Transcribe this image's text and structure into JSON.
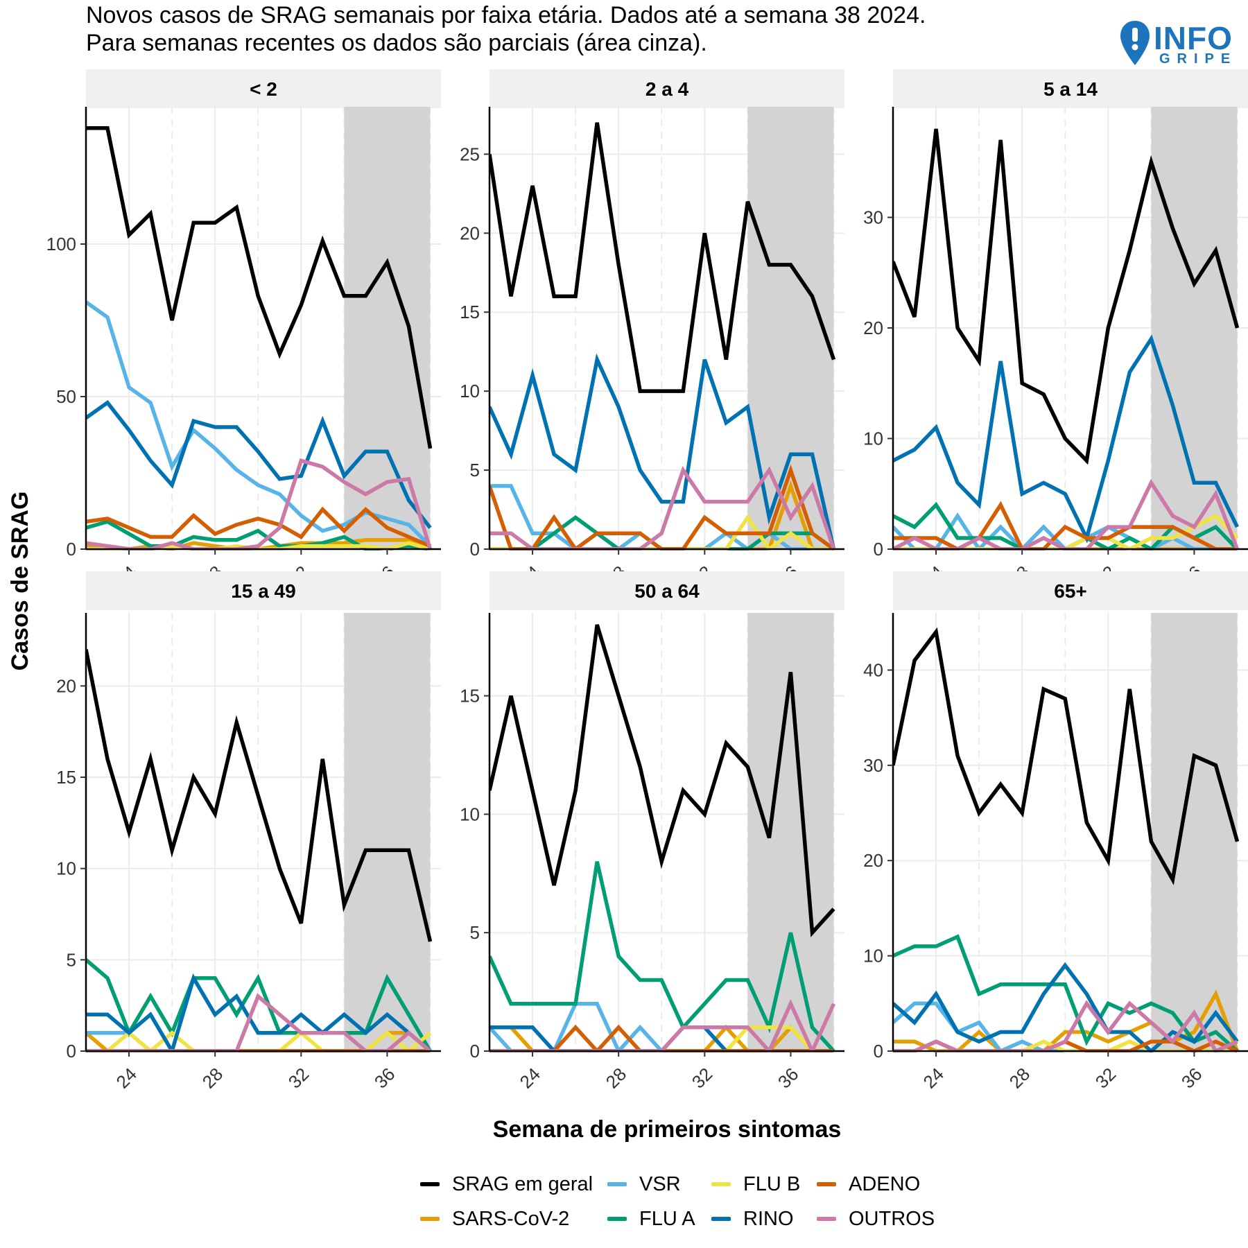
{
  "title": {
    "line1": "Novos casos de SRAG semanais por faixa etária. Dados até a semana 38 2024.",
    "line2": "Para semanas recentes os dados são parciais (área cinza)."
  },
  "logo": {
    "big": "INFO",
    "small": "GRIPE"
  },
  "series_styles": [
    {
      "key": "srag",
      "color": "#000000"
    },
    {
      "key": "sars",
      "color": "#E69F00"
    },
    {
      "key": "vsr",
      "color": "#56B4E9"
    },
    {
      "key": "flua",
      "color": "#009E73"
    },
    {
      "key": "flub",
      "color": "#F0E442"
    },
    {
      "key": "rino",
      "color": "#0072B2"
    },
    {
      "key": "adeno",
      "color": "#D55E00"
    },
    {
      "key": "outros",
      "color": "#CC79A7"
    }
  ],
  "legend": [
    {
      "label": "SRAG em geral",
      "color": "#000000"
    },
    {
      "label": "SARS-CoV-2",
      "color": "#E69F00"
    },
    {
      "label": "VSR",
      "color": "#56B4E9"
    },
    {
      "label": "FLU A",
      "color": "#009E73"
    },
    {
      "label": "FLU B",
      "color": "#F0E442"
    },
    {
      "label": "RINO",
      "color": "#0072B2"
    },
    {
      "label": "ADENO",
      "color": "#D55E00"
    },
    {
      "label": "OUTROS",
      "color": "#CC79A7"
    }
  ],
  "chart_data": {
    "type": "line",
    "xlabel": "Semana de primeiros sintomas",
    "ylabel": "Casos de SRAG",
    "x": [
      22,
      23,
      24,
      25,
      26,
      27,
      28,
      29,
      30,
      31,
      32,
      33,
      34,
      35,
      36,
      37,
      38
    ],
    "x_ticks": [
      24,
      28,
      32,
      36
    ],
    "x_tick_labels": [
      "24",
      "28",
      "32",
      "36"
    ],
    "xlim": [
      22,
      38.5
    ],
    "partial_region": [
      34,
      38
    ],
    "grid": true,
    "legend_position": "bottom",
    "panels": [
      {
        "name": "< 2",
        "ylim": [
          0,
          145
        ],
        "y_ticks": [
          0,
          50,
          100
        ],
        "y_tick_labels": [
          "0",
          "50",
          "100"
        ],
        "series": {
          "srag": [
            138,
            138,
            103,
            110,
            75,
            107,
            107,
            112,
            83,
            64,
            80,
            101,
            83,
            83,
            94,
            73,
            33
          ],
          "vsr": [
            81,
            76,
            53,
            48,
            27,
            39,
            33,
            26,
            21,
            18,
            11,
            6,
            8,
            12,
            10,
            8,
            1
          ],
          "rino": [
            43,
            48,
            39,
            29,
            21,
            42,
            40,
            40,
            32,
            23,
            24,
            42,
            24,
            32,
            32,
            16,
            7
          ],
          "flua": [
            7,
            9,
            5,
            1,
            1,
            4,
            3,
            3,
            6,
            1,
            1,
            2,
            4,
            0,
            0,
            1,
            0
          ],
          "adeno": [
            9,
            10,
            7,
            4,
            4,
            11,
            5,
            8,
            10,
            8,
            4,
            13,
            6,
            13,
            7,
            4,
            1
          ],
          "sars": [
            1,
            1,
            0,
            1,
            0,
            2,
            1,
            0,
            0,
            1,
            2,
            2,
            2,
            3,
            3,
            3,
            0
          ],
          "flub": [
            0,
            0,
            0,
            0,
            1,
            0,
            0,
            1,
            0,
            0,
            1,
            1,
            1,
            1,
            0,
            2,
            0
          ],
          "outros": [
            2,
            1,
            0,
            0,
            2,
            0,
            0,
            0,
            1,
            7,
            29,
            27,
            22,
            18,
            22,
            23,
            0
          ]
        }
      },
      {
        "name": "2 a 4",
        "ylim": [
          0,
          28
        ],
        "y_ticks": [
          0,
          5,
          10,
          15,
          20,
          25
        ],
        "y_tick_labels": [
          "0",
          "5",
          "10",
          "15",
          "20",
          "25"
        ],
        "series": {
          "srag": [
            25,
            16,
            23,
            16,
            16,
            27,
            18,
            10,
            10,
            10,
            20,
            12,
            22,
            18,
            18,
            16,
            12
          ],
          "vsr": [
            4,
            4,
            1,
            1,
            0,
            1,
            0,
            1,
            0,
            0,
            0,
            1,
            0,
            1,
            0,
            0,
            0
          ],
          "rino": [
            9,
            6,
            11,
            6,
            5,
            12,
            9,
            5,
            3,
            3,
            12,
            8,
            9,
            2,
            6,
            6,
            0
          ],
          "flua": [
            0,
            0,
            0,
            1,
            2,
            1,
            0,
            0,
            0,
            0,
            0,
            0,
            0,
            1,
            1,
            1,
            0
          ],
          "adeno": [
            4,
            0,
            0,
            2,
            0,
            1,
            1,
            1,
            0,
            0,
            2,
            1,
            1,
            1,
            5,
            1,
            0
          ],
          "sars": [
            0,
            0,
            0,
            0,
            0,
            0,
            0,
            0,
            0,
            0,
            0,
            0,
            0,
            0,
            4,
            0,
            0
          ],
          "flub": [
            0,
            0,
            0,
            0,
            0,
            0,
            0,
            0,
            0,
            0,
            0,
            0,
            2,
            0,
            1,
            0,
            0
          ],
          "outros": [
            1,
            1,
            0,
            0,
            0,
            0,
            0,
            0,
            1,
            5,
            3,
            3,
            3,
            5,
            2,
            4,
            0
          ]
        }
      },
      {
        "name": "5 a 14",
        "ylim": [
          0,
          40
        ],
        "y_ticks": [
          0,
          10,
          20,
          30
        ],
        "y_tick_labels": [
          "0",
          "10",
          "20",
          "30"
        ],
        "series": {
          "srag": [
            26,
            21,
            38,
            20,
            17,
            37,
            15,
            14,
            10,
            8,
            20,
            27,
            35,
            29,
            24,
            27,
            20
          ],
          "vsr": [
            2,
            0,
            0,
            3,
            0,
            2,
            0,
            2,
            0,
            1,
            2,
            1,
            0,
            1,
            0,
            0,
            0
          ],
          "rino": [
            8,
            9,
            11,
            6,
            4,
            17,
            5,
            6,
            5,
            1,
            8,
            16,
            19,
            13,
            6,
            6,
            2
          ],
          "flua": [
            3,
            2,
            4,
            1,
            1,
            1,
            0,
            0,
            0,
            1,
            0,
            1,
            0,
            2,
            1,
            2,
            0
          ],
          "adeno": [
            1,
            1,
            1,
            0,
            1,
            4,
            0,
            0,
            2,
            1,
            1,
            2,
            2,
            2,
            1,
            0,
            0
          ],
          "sars": [
            0,
            0,
            0,
            0,
            0,
            0,
            0,
            0,
            0,
            0,
            0,
            0,
            0,
            0,
            0,
            0,
            0
          ],
          "flub": [
            0,
            0,
            0,
            0,
            0,
            0,
            0,
            0,
            0,
            1,
            1,
            0,
            1,
            1,
            2,
            3,
            1
          ],
          "outros": [
            0,
            1,
            0,
            0,
            1,
            0,
            0,
            1,
            0,
            0,
            2,
            2,
            6,
            3,
            2,
            5,
            0
          ]
        }
      },
      {
        "name": "15 a 49",
        "ylim": [
          0,
          24
        ],
        "y_ticks": [
          0,
          5,
          10,
          15,
          20
        ],
        "y_tick_labels": [
          "0",
          "5",
          "10",
          "15",
          "20"
        ],
        "series": {
          "srag": [
            22,
            16,
            12,
            16,
            11,
            15,
            13,
            18,
            14,
            10,
            7,
            16,
            8,
            11,
            11,
            11,
            6
          ],
          "vsr": [
            1,
            1,
            1,
            0,
            0,
            0,
            0,
            0,
            0,
            0,
            0,
            0,
            0,
            0,
            0,
            0,
            0
          ],
          "rino": [
            2,
            2,
            1,
            2,
            0,
            4,
            2,
            3,
            1,
            1,
            2,
            1,
            2,
            1,
            2,
            1,
            0
          ],
          "flua": [
            5,
            4,
            1,
            3,
            1,
            4,
            4,
            2,
            4,
            1,
            1,
            1,
            1,
            1,
            4,
            2,
            0
          ],
          "adeno": [
            0,
            0,
            0,
            0,
            0,
            0,
            0,
            0,
            0,
            0,
            0,
            0,
            0,
            0,
            0,
            0,
            0
          ],
          "sars": [
            1,
            0,
            0,
            0,
            0,
            0,
            0,
            0,
            0,
            0,
            0,
            0,
            0,
            0,
            1,
            1,
            0
          ],
          "flub": [
            0,
            0,
            1,
            0,
            1,
            0,
            0,
            0,
            0,
            0,
            1,
            0,
            0,
            0,
            1,
            0,
            1
          ],
          "outros": [
            0,
            0,
            0,
            0,
            0,
            0,
            0,
            0,
            3,
            2,
            1,
            1,
            1,
            0,
            0,
            1,
            0
          ]
        }
      },
      {
        "name": "50 a 64",
        "ylim": [
          0,
          18.5
        ],
        "y_ticks": [
          0,
          5,
          10,
          15
        ],
        "y_tick_labels": [
          "0",
          "5",
          "10",
          "15"
        ],
        "series": {
          "srag": [
            11,
            15,
            11,
            7,
            11,
            18,
            15,
            12,
            8,
            11,
            10,
            13,
            12,
            9,
            16,
            5,
            6
          ],
          "vsr": [
            1,
            0,
            0,
            0,
            2,
            2,
            0,
            1,
            0,
            0,
            0,
            0,
            0,
            0,
            0,
            0,
            0
          ],
          "rino": [
            1,
            1,
            1,
            0,
            0,
            0,
            0,
            0,
            0,
            1,
            1,
            0,
            0,
            0,
            0,
            0,
            0
          ],
          "flua": [
            4,
            2,
            2,
            2,
            2,
            8,
            4,
            3,
            3,
            1,
            2,
            3,
            3,
            1,
            5,
            1,
            0
          ],
          "adeno": [
            0,
            0,
            0,
            0,
            1,
            0,
            1,
            0,
            0,
            0,
            0,
            0,
            0,
            0,
            0,
            0,
            0
          ],
          "sars": [
            1,
            1,
            0,
            0,
            0,
            0,
            0,
            0,
            0,
            0,
            0,
            1,
            0,
            0,
            1,
            0,
            0
          ],
          "flub": [
            0,
            0,
            0,
            0,
            0,
            0,
            0,
            0,
            0,
            0,
            0,
            0,
            1,
            1,
            1,
            0,
            0
          ],
          "outros": [
            0,
            0,
            0,
            0,
            0,
            0,
            0,
            0,
            0,
            1,
            1,
            1,
            1,
            0,
            2,
            0,
            2
          ]
        }
      },
      {
        "name": "65+",
        "ylim": [
          0,
          46
        ],
        "y_ticks": [
          0,
          10,
          20,
          30,
          40
        ],
        "y_tick_labels": [
          "0",
          "10",
          "20",
          "30",
          "40"
        ],
        "series": {
          "srag": [
            30,
            41,
            44,
            31,
            25,
            28,
            25,
            38,
            37,
            24,
            20,
            38,
            22,
            18,
            31,
            30,
            22
          ],
          "vsr": [
            3,
            5,
            5,
            2,
            3,
            0,
            1,
            0,
            0,
            0,
            0,
            0,
            0,
            0,
            0,
            0,
            0
          ],
          "rino": [
            5,
            3,
            6,
            2,
            1,
            2,
            2,
            6,
            9,
            6,
            2,
            2,
            0,
            2,
            1,
            4,
            1
          ],
          "flua": [
            10,
            11,
            11,
            12,
            6,
            7,
            7,
            7,
            7,
            1,
            5,
            4,
            5,
            4,
            1,
            2,
            0
          ],
          "adeno": [
            0,
            0,
            1,
            0,
            0,
            0,
            0,
            0,
            1,
            0,
            0,
            0,
            1,
            1,
            0,
            1,
            0
          ],
          "sars": [
            1,
            1,
            0,
            0,
            2,
            0,
            0,
            0,
            2,
            2,
            1,
            2,
            3,
            1,
            2,
            6,
            0
          ],
          "flub": [
            0,
            0,
            1,
            0,
            0,
            0,
            0,
            1,
            0,
            0,
            0,
            1,
            0,
            0,
            0,
            0,
            0
          ],
          "outros": [
            0,
            0,
            1,
            0,
            0,
            0,
            0,
            0,
            1,
            5,
            2,
            5,
            3,
            1,
            4,
            0,
            1
          ]
        }
      }
    ]
  }
}
